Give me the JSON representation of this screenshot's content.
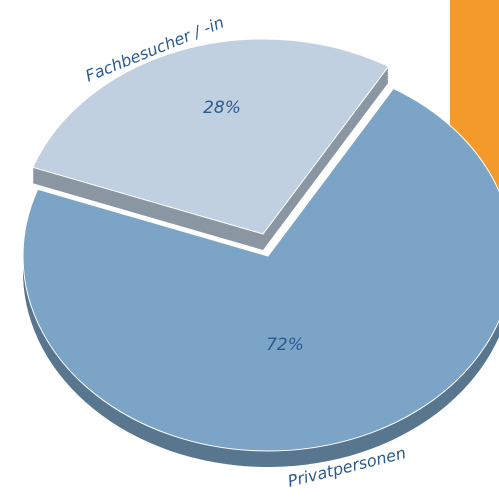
{
  "chart_data": {
    "type": "pie",
    "categories": [
      "Fachbesucher / -in",
      "Privatpersonen"
    ],
    "values": [
      28,
      72
    ],
    "value_labels": [
      "28%",
      "72%"
    ],
    "colors": [
      "#c0d0e1",
      "#7ca4c7"
    ]
  }
}
